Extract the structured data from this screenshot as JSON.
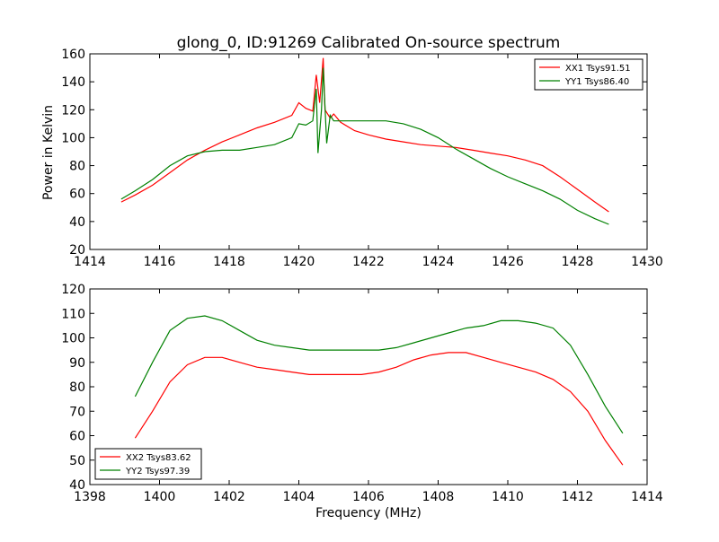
{
  "chart_data": [
    {
      "type": "line",
      "title": "glong_0, ID:91269 Calibrated On-source spectrum",
      "xlabel": "",
      "ylabel": "Power in Kelvin",
      "xlim": [
        1414,
        1430
      ],
      "ylim": [
        20,
        160
      ],
      "xticks": [
        1414,
        1416,
        1418,
        1420,
        1422,
        1424,
        1426,
        1428,
        1430
      ],
      "yticks": [
        20,
        40,
        60,
        80,
        100,
        120,
        140,
        160
      ],
      "legend_position": "top-right",
      "series": [
        {
          "name": "XX1 Tsys91.51",
          "color": "#ff0000",
          "points": [
            [
              1414.9,
              54
            ],
            [
              1415.3,
              59
            ],
            [
              1415.8,
              66
            ],
            [
              1416.3,
              75
            ],
            [
              1416.8,
              84
            ],
            [
              1417.3,
              91
            ],
            [
              1417.8,
              97
            ],
            [
              1418.3,
              102
            ],
            [
              1418.8,
              107
            ],
            [
              1419.3,
              111
            ],
            [
              1419.8,
              116
            ],
            [
              1420.0,
              125
            ],
            [
              1420.2,
              121
            ],
            [
              1420.4,
              119
            ],
            [
              1420.5,
              145
            ],
            [
              1420.6,
              125
            ],
            [
              1420.7,
              157
            ],
            [
              1420.75,
              120
            ],
            [
              1420.9,
              114
            ],
            [
              1421.0,
              117
            ],
            [
              1421.2,
              111
            ],
            [
              1421.6,
              105
            ],
            [
              1422.0,
              102
            ],
            [
              1422.5,
              99
            ],
            [
              1423.0,
              97
            ],
            [
              1423.5,
              95
            ],
            [
              1424.0,
              94
            ],
            [
              1424.5,
              93
            ],
            [
              1425.0,
              91
            ],
            [
              1425.5,
              89
            ],
            [
              1426.0,
              87
            ],
            [
              1426.5,
              84
            ],
            [
              1427.0,
              80
            ],
            [
              1427.5,
              72
            ],
            [
              1428.0,
              63
            ],
            [
              1428.5,
              54
            ],
            [
              1428.9,
              47
            ]
          ]
        },
        {
          "name": "YY1 Tsys86.40",
          "color": "#008000",
          "points": [
            [
              1414.9,
              56
            ],
            [
              1415.3,
              62
            ],
            [
              1415.8,
              70
            ],
            [
              1416.3,
              80
            ],
            [
              1416.8,
              87
            ],
            [
              1417.3,
              90
            ],
            [
              1417.8,
              91
            ],
            [
              1418.3,
              91
            ],
            [
              1418.8,
              93
            ],
            [
              1419.3,
              95
            ],
            [
              1419.8,
              100
            ],
            [
              1420.0,
              110
            ],
            [
              1420.2,
              109
            ],
            [
              1420.4,
              112
            ],
            [
              1420.5,
              135
            ],
            [
              1420.55,
              89
            ],
            [
              1420.65,
              120
            ],
            [
              1420.7,
              150
            ],
            [
              1420.8,
              96
            ],
            [
              1420.9,
              116
            ],
            [
              1421.0,
              112
            ],
            [
              1421.5,
              112
            ],
            [
              1422.0,
              112
            ],
            [
              1422.5,
              112
            ],
            [
              1423.0,
              110
            ],
            [
              1423.5,
              106
            ],
            [
              1424.0,
              100
            ],
            [
              1424.5,
              92
            ],
            [
              1425.0,
              85
            ],
            [
              1425.5,
              78
            ],
            [
              1426.0,
              72
            ],
            [
              1426.5,
              67
            ],
            [
              1427.0,
              62
            ],
            [
              1427.5,
              56
            ],
            [
              1428.0,
              48
            ],
            [
              1428.5,
              42
            ],
            [
              1428.9,
              38
            ]
          ]
        }
      ]
    },
    {
      "type": "line",
      "title": "",
      "xlabel": "Frequency (MHz)",
      "ylabel": "",
      "xlim": [
        1398,
        1414
      ],
      "ylim": [
        40,
        120
      ],
      "xticks": [
        1398,
        1400,
        1402,
        1404,
        1406,
        1408,
        1410,
        1412,
        1414
      ],
      "yticks": [
        40,
        50,
        60,
        70,
        80,
        90,
        100,
        110,
        120
      ],
      "legend_position": "bottom-left",
      "series": [
        {
          "name": "XX2 Tsys83.62",
          "color": "#ff0000",
          "points": [
            [
              1399.3,
              59
            ],
            [
              1399.8,
              70
            ],
            [
              1400.3,
              82
            ],
            [
              1400.8,
              89
            ],
            [
              1401.3,
              92
            ],
            [
              1401.8,
              92
            ],
            [
              1402.3,
              90
            ],
            [
              1402.8,
              88
            ],
            [
              1403.3,
              87
            ],
            [
              1403.8,
              86
            ],
            [
              1404.3,
              85
            ],
            [
              1404.8,
              85
            ],
            [
              1405.3,
              85
            ],
            [
              1405.8,
              85
            ],
            [
              1406.3,
              86
            ],
            [
              1406.8,
              88
            ],
            [
              1407.3,
              91
            ],
            [
              1407.8,
              93
            ],
            [
              1408.3,
              94
            ],
            [
              1408.8,
              94
            ],
            [
              1409.3,
              92
            ],
            [
              1409.8,
              90
            ],
            [
              1410.3,
              88
            ],
            [
              1410.8,
              86
            ],
            [
              1411.3,
              83
            ],
            [
              1411.8,
              78
            ],
            [
              1412.3,
              70
            ],
            [
              1412.8,
              58
            ],
            [
              1413.3,
              48
            ]
          ]
        },
        {
          "name": "YY2 Tsys97.39",
          "color": "#008000",
          "points": [
            [
              1399.3,
              76
            ],
            [
              1399.8,
              90
            ],
            [
              1400.3,
              103
            ],
            [
              1400.8,
              108
            ],
            [
              1401.3,
              109
            ],
            [
              1401.8,
              107
            ],
            [
              1402.3,
              103
            ],
            [
              1402.8,
              99
            ],
            [
              1403.3,
              97
            ],
            [
              1403.8,
              96
            ],
            [
              1404.3,
              95
            ],
            [
              1404.8,
              95
            ],
            [
              1405.3,
              95
            ],
            [
              1405.8,
              95
            ],
            [
              1406.3,
              95
            ],
            [
              1406.8,
              96
            ],
            [
              1407.3,
              98
            ],
            [
              1407.8,
              100
            ],
            [
              1408.3,
              102
            ],
            [
              1408.8,
              104
            ],
            [
              1409.3,
              105
            ],
            [
              1409.8,
              107
            ],
            [
              1410.3,
              107
            ],
            [
              1410.8,
              106
            ],
            [
              1411.3,
              104
            ],
            [
              1411.8,
              97
            ],
            [
              1412.3,
              85
            ],
            [
              1412.8,
              72
            ],
            [
              1413.3,
              61
            ]
          ]
        }
      ]
    }
  ]
}
